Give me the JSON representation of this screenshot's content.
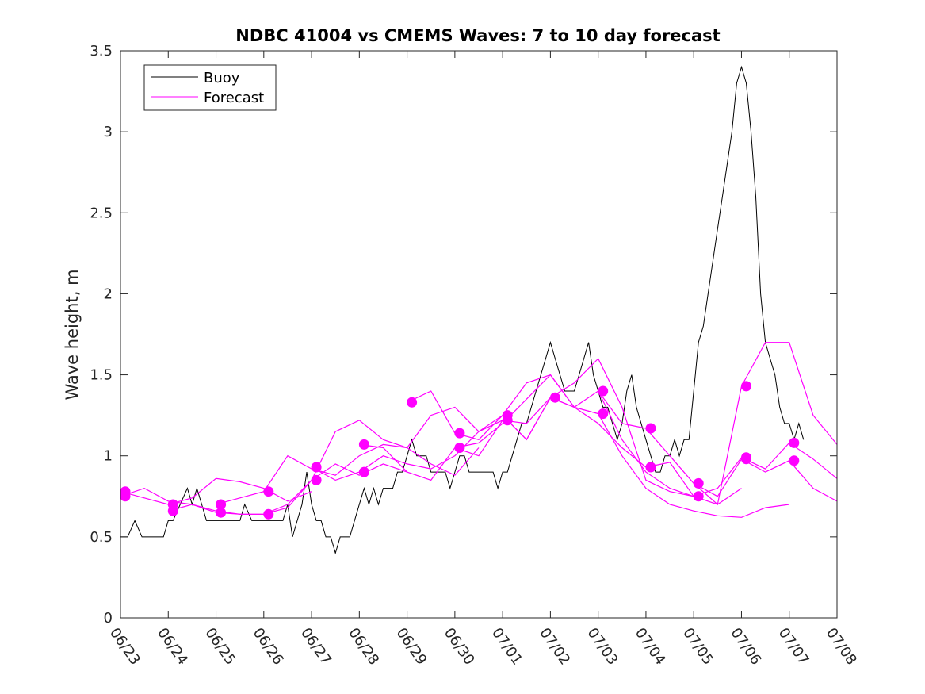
{
  "chart_data": {
    "type": "line",
    "title": "NDBC 41004 vs CMEMS Waves: 7 to 10 day forecast",
    "xlabel": "",
    "ylabel": "Wave height, m",
    "xlim": [
      0,
      15
    ],
    "ylim": [
      0,
      3.5
    ],
    "x_tick_labels": [
      "06/23",
      "06/24",
      "06/25",
      "06/26",
      "06/27",
      "06/28",
      "06/29",
      "06/30",
      "07/01",
      "07/02",
      "07/03",
      "07/04",
      "07/05",
      "07/06",
      "07/07",
      "07/08"
    ],
    "y_tick_labels": [
      "0",
      "0.5",
      "1",
      "1.5",
      "2",
      "2.5",
      "3",
      "3.5"
    ],
    "y_tick_values": [
      0,
      0.5,
      1,
      1.5,
      2,
      2.5,
      3,
      3.5
    ],
    "grid": false,
    "legend_position": "top-left",
    "colors": {
      "buoy": "#000000",
      "forecast": "#ff00ff"
    },
    "series": [
      {
        "name": "Buoy",
        "x": [
          0.0,
          0.15,
          0.3,
          0.45,
          0.6,
          0.75,
          0.9,
          1.0,
          1.1,
          1.25,
          1.4,
          1.5,
          1.6,
          1.7,
          1.8,
          1.9,
          2.0,
          2.1,
          2.25,
          2.4,
          2.5,
          2.6,
          2.75,
          2.9,
          3.0,
          3.1,
          3.2,
          3.3,
          3.4,
          3.5,
          3.6,
          3.7,
          3.8,
          3.9,
          4.0,
          4.1,
          4.2,
          4.3,
          4.4,
          4.5,
          4.6,
          4.7,
          4.8,
          4.9,
          5.0,
          5.1,
          5.2,
          5.3,
          5.4,
          5.5,
          5.6,
          5.7,
          5.8,
          5.9,
          6.0,
          6.1,
          6.2,
          6.3,
          6.4,
          6.5,
          6.6,
          6.7,
          6.8,
          6.9,
          7.0,
          7.1,
          7.2,
          7.3,
          7.4,
          7.5,
          7.6,
          7.7,
          7.8,
          7.9,
          8.0,
          8.1,
          8.2,
          8.3,
          8.4,
          8.5,
          8.6,
          8.7,
          8.8,
          8.9,
          9.0,
          9.1,
          9.2,
          9.3,
          9.4,
          9.5,
          9.6,
          9.7,
          9.8,
          9.9,
          10.0,
          10.1,
          10.2,
          10.3,
          10.4,
          10.5,
          10.6,
          10.7,
          10.8,
          10.9,
          11.0,
          11.1,
          11.2,
          11.3,
          11.4,
          11.5,
          11.6,
          11.7,
          11.8,
          11.9,
          12.0,
          12.1,
          12.2,
          12.3,
          12.4,
          12.5,
          12.6,
          12.7,
          12.8,
          12.9,
          13.0,
          13.1,
          13.2,
          13.3,
          13.4,
          13.5,
          13.6,
          13.7,
          13.8,
          13.9,
          14.0,
          14.1,
          14.2,
          14.3
        ],
        "values": [
          0.5,
          0.5,
          0.6,
          0.5,
          0.5,
          0.5,
          0.5,
          0.6,
          0.6,
          0.7,
          0.8,
          0.7,
          0.8,
          0.7,
          0.6,
          0.6,
          0.6,
          0.6,
          0.6,
          0.6,
          0.6,
          0.7,
          0.6,
          0.6,
          0.6,
          0.6,
          0.6,
          0.6,
          0.6,
          0.7,
          0.5,
          0.6,
          0.7,
          0.9,
          0.7,
          0.6,
          0.6,
          0.5,
          0.5,
          0.4,
          0.5,
          0.5,
          0.5,
          0.6,
          0.7,
          0.8,
          0.7,
          0.8,
          0.7,
          0.8,
          0.8,
          0.8,
          0.9,
          0.9,
          1.0,
          1.1,
          1.0,
          1.0,
          1.0,
          0.9,
          0.9,
          0.9,
          0.9,
          0.8,
          0.9,
          1.0,
          1.0,
          0.9,
          0.9,
          0.9,
          0.9,
          0.9,
          0.9,
          0.8,
          0.9,
          0.9,
          1.0,
          1.1,
          1.2,
          1.2,
          1.3,
          1.4,
          1.5,
          1.6,
          1.7,
          1.6,
          1.5,
          1.4,
          1.4,
          1.4,
          1.5,
          1.6,
          1.7,
          1.5,
          1.4,
          1.3,
          1.3,
          1.2,
          1.1,
          1.2,
          1.4,
          1.5,
          1.3,
          1.2,
          1.1,
          1.0,
          0.9,
          0.9,
          1.0,
          1.0,
          1.1,
          1.0,
          1.1,
          1.1,
          1.4,
          1.7,
          1.8,
          2.0,
          2.2,
          2.4,
          2.6,
          2.8,
          3.0,
          3.3,
          3.4,
          3.3,
          3.0,
          2.6,
          2.0,
          1.7,
          1.6,
          1.5,
          1.3,
          1.2,
          1.2,
          1.1,
          1.2,
          1.1
        ]
      },
      {
        "name": "Forecast",
        "runs": [
          {
            "x": [
              0.0,
              0.5,
              1.0,
              1.5,
              2.0,
              2.5,
              3.0
            ],
            "values": [
              0.75,
              0.8,
              0.72,
              0.7,
              0.66,
              0.64,
              0.64
            ]
          },
          {
            "x": [
              0.0,
              0.5,
              1.0,
              1.5,
              2.0,
              2.5,
              3.0,
              3.5,
              4.0
            ],
            "values": [
              0.78,
              0.74,
              0.7,
              0.74,
              0.86,
              0.84,
              0.8,
              0.72,
              0.78
            ]
          },
          {
            "x": [
              1.0,
              1.5,
              2.0,
              2.5,
              3.0,
              3.5,
              4.0,
              4.5,
              5.0,
              5.5,
              6.0
            ],
            "values": [
              0.66,
              0.7,
              0.65,
              0.64,
              0.64,
              0.7,
              0.85,
              0.95,
              0.88,
              0.95,
              0.9
            ]
          },
          {
            "x": [
              2.0,
              2.5,
              3.0,
              3.5,
              4.0,
              4.5,
              5.0,
              5.5,
              6.0,
              6.5,
              7.0,
              7.5
            ],
            "values": [
              0.7,
              0.74,
              0.78,
              1.0,
              0.92,
              0.88,
              1.0,
              1.07,
              1.05,
              0.95,
              0.88,
              1.05
            ]
          },
          {
            "x": [
              3.0,
              3.5,
              4.0,
              4.5,
              5.0,
              5.5,
              6.0,
              6.5,
              7.0,
              7.5,
              8.0
            ],
            "values": [
              0.64,
              0.68,
              0.85,
              1.15,
              1.22,
              1.1,
              1.05,
              1.25,
              1.3,
              1.15,
              1.22
            ]
          },
          {
            "x": [
              4.0,
              4.5,
              5.0,
              5.5,
              6.0,
              6.5,
              7.0,
              7.5,
              8.0,
              8.5,
              9.0
            ],
            "values": [
              0.93,
              0.85,
              0.9,
              1.0,
              0.95,
              0.92,
              1.0,
              1.15,
              1.25,
              1.1,
              1.36
            ]
          },
          {
            "x": [
              5.0,
              5.5,
              6.0,
              6.5,
              7.0,
              7.5,
              8.0,
              8.5,
              9.0,
              9.5,
              10.0
            ],
            "values": [
              1.07,
              1.05,
              0.9,
              0.85,
              1.05,
              1.08,
              1.2,
              1.35,
              1.5,
              1.3,
              1.26
            ]
          },
          {
            "x": [
              6.0,
              6.5,
              7.0,
              7.5,
              8.0,
              8.5,
              9.0,
              9.5,
              10.0,
              10.5,
              11.0
            ],
            "values": [
              1.33,
              1.4,
              1.14,
              1.1,
              1.25,
              1.45,
              1.5,
              1.3,
              1.2,
              1.05,
              0.93
            ]
          },
          {
            "x": [
              7.0,
              7.5,
              8.0,
              8.5,
              9.0,
              9.5,
              10.0,
              10.5,
              11.0,
              11.5,
              12.0
            ],
            "values": [
              1.05,
              1.0,
              1.22,
              1.2,
              1.36,
              1.45,
              1.6,
              1.3,
              0.85,
              0.78,
              0.75
            ]
          },
          {
            "x": [
              8.0,
              8.5,
              9.0,
              9.5,
              10.0,
              10.5,
              11.0,
              11.5,
              12.0,
              12.5,
              13.0
            ],
            "values": [
              1.25,
              1.1,
              1.36,
              1.3,
              1.4,
              1.1,
              0.9,
              0.8,
              0.75,
              0.7,
              0.8
            ]
          },
          {
            "x": [
              9.0,
              9.5,
              10.0,
              10.5,
              11.0,
              11.5,
              12.0,
              12.5,
              13.0,
              13.5,
              14.0
            ],
            "values": [
              1.36,
              1.3,
              1.26,
              1.0,
              0.8,
              0.7,
              0.66,
              0.63,
              0.62,
              0.68,
              0.7
            ]
          },
          {
            "x": [
              10.0,
              10.5,
              11.0,
              11.5,
              12.0,
              12.5,
              13.0,
              13.5,
              14.0,
              14.5,
              15.0
            ],
            "values": [
              1.4,
              1.2,
              1.17,
              1.0,
              0.83,
              0.7,
              1.43,
              1.7,
              1.7,
              1.25,
              1.07
            ]
          },
          {
            "x": [
              11.0,
              11.5,
              12.0,
              12.5,
              13.0,
              13.5,
              14.0,
              14.5,
              15.0
            ],
            "values": [
              0.93,
              0.96,
              0.75,
              0.8,
              0.99,
              0.92,
              1.08,
              0.98,
              0.86
            ]
          },
          {
            "x": [
              12.0,
              12.5,
              13.0,
              13.5,
              14.0,
              14.5,
              15.0
            ],
            "values": [
              0.83,
              0.75,
              0.98,
              0.9,
              0.97,
              0.8,
              0.72
            ]
          }
        ],
        "markers": [
          {
            "x": 0.1,
            "y": 0.75
          },
          {
            "x": 0.1,
            "y": 0.78
          },
          {
            "x": 1.1,
            "y": 0.66
          },
          {
            "x": 1.1,
            "y": 0.7
          },
          {
            "x": 2.1,
            "y": 0.65
          },
          {
            "x": 2.1,
            "y": 0.7
          },
          {
            "x": 3.1,
            "y": 0.64
          },
          {
            "x": 3.1,
            "y": 0.78
          },
          {
            "x": 4.1,
            "y": 0.85
          },
          {
            "x": 4.1,
            "y": 0.93
          },
          {
            "x": 5.1,
            "y": 0.9
          },
          {
            "x": 5.1,
            "y": 1.07
          },
          {
            "x": 6.1,
            "y": 1.33
          },
          {
            "x": 7.1,
            "y": 1.05
          },
          {
            "x": 7.1,
            "y": 1.14
          },
          {
            "x": 8.1,
            "y": 1.22
          },
          {
            "x": 8.1,
            "y": 1.25
          },
          {
            "x": 9.1,
            "y": 1.36
          },
          {
            "x": 10.1,
            "y": 1.26
          },
          {
            "x": 10.1,
            "y": 1.4
          },
          {
            "x": 11.1,
            "y": 0.93
          },
          {
            "x": 11.1,
            "y": 1.17
          },
          {
            "x": 12.1,
            "y": 0.75
          },
          {
            "x": 12.1,
            "y": 0.83
          },
          {
            "x": 13.1,
            "y": 0.98
          },
          {
            "x": 13.1,
            "y": 0.99
          },
          {
            "x": 13.1,
            "y": 1.43
          },
          {
            "x": 14.1,
            "y": 0.97
          },
          {
            "x": 14.1,
            "y": 1.08
          }
        ]
      }
    ]
  }
}
